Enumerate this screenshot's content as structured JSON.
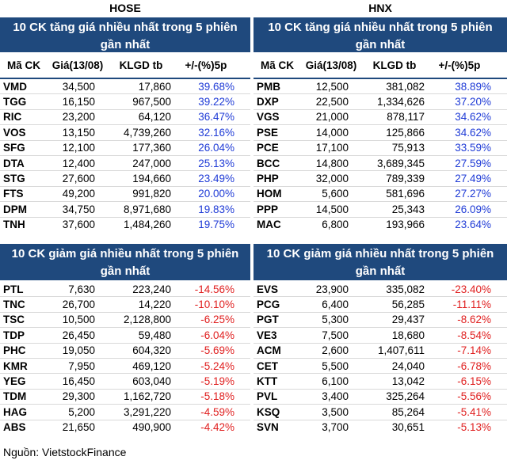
{
  "hose": {
    "title": "HOSE",
    "gainers": {
      "header": "10 CK tăng giá nhiều nhất trong 5 phiên gần nhất",
      "columns": [
        "Mã CK",
        "Giá(13/08)",
        "KLGD tb",
        "+/-(%)5p"
      ],
      "rows": [
        [
          "VMD",
          "34,500",
          "17,860",
          "39.68%"
        ],
        [
          "TGG",
          "16,150",
          "967,500",
          "39.22%"
        ],
        [
          "RIC",
          "23,200",
          "64,120",
          "36.47%"
        ],
        [
          "VOS",
          "13,150",
          "4,739,260",
          "32.16%"
        ],
        [
          "SFG",
          "12,100",
          "177,360",
          "26.04%"
        ],
        [
          "DTA",
          "12,400",
          "247,000",
          "25.13%"
        ],
        [
          "STG",
          "27,600",
          "194,660",
          "23.49%"
        ],
        [
          "FTS",
          "49,200",
          "991,820",
          "20.00%"
        ],
        [
          "DPM",
          "34,750",
          "8,971,680",
          "19.83%"
        ],
        [
          "TNH",
          "37,600",
          "1,484,260",
          "19.75%"
        ]
      ]
    },
    "losers": {
      "header": "10 CK giảm giá nhiều nhất trong 5 phiên gần nhất",
      "rows": [
        [
          "PTL",
          "7,630",
          "223,240",
          "-14.56%"
        ],
        [
          "TNC",
          "26,700",
          "14,220",
          "-10.10%"
        ],
        [
          "TSC",
          "10,500",
          "2,128,800",
          "-6.25%"
        ],
        [
          "TDP",
          "26,450",
          "59,480",
          "-6.04%"
        ],
        [
          "PHC",
          "19,050",
          "604,320",
          "-5.69%"
        ],
        [
          "KMR",
          "7,950",
          "469,120",
          "-5.24%"
        ],
        [
          "YEG",
          "16,450",
          "603,040",
          "-5.19%"
        ],
        [
          "TDM",
          "29,300",
          "1,162,720",
          "-5.18%"
        ],
        [
          "HAG",
          "5,200",
          "3,291,220",
          "-4.59%"
        ],
        [
          "ABS",
          "21,650",
          "490,900",
          "-4.42%"
        ]
      ]
    }
  },
  "hnx": {
    "title": "HNX",
    "gainers": {
      "header": "10 CK tăng giá nhiều nhất trong 5 phiên gần nhất",
      "columns": [
        "Mã CK",
        "Giá(13/08)",
        "KLGD tb",
        "+/-(%)5p"
      ],
      "rows": [
        [
          "PMB",
          "12,500",
          "381,082",
          "38.89%"
        ],
        [
          "DXP",
          "22,500",
          "1,334,626",
          "37.20%"
        ],
        [
          "VGS",
          "21,000",
          "878,117",
          "34.62%"
        ],
        [
          "PSE",
          "14,000",
          "125,866",
          "34.62%"
        ],
        [
          "PCE",
          "17,100",
          "75,913",
          "33.59%"
        ],
        [
          "BCC",
          "14,800",
          "3,689,345",
          "27.59%"
        ],
        [
          "PHP",
          "32,000",
          "789,339",
          "27.49%"
        ],
        [
          "HOM",
          "5,600",
          "581,696",
          "27.27%"
        ],
        [
          "PPP",
          "14,500",
          "25,343",
          "26.09%"
        ],
        [
          "MAC",
          "6,800",
          "193,966",
          "23.64%"
        ]
      ]
    },
    "losers": {
      "header": "10 CK giảm giá nhiều nhất trong 5 phiên gần nhất",
      "rows": [
        [
          "EVS",
          "23,900",
          "335,082",
          "-23.40%"
        ],
        [
          "PCG",
          "6,400",
          "56,285",
          "-11.11%"
        ],
        [
          "PGT",
          "5,300",
          "29,437",
          "-8.62%"
        ],
        [
          "VE3",
          "7,500",
          "18,680",
          "-8.54%"
        ],
        [
          "ACM",
          "2,600",
          "1,407,611",
          "-7.14%"
        ],
        [
          "CET",
          "5,500",
          "24,040",
          "-6.78%"
        ],
        [
          "KTT",
          "6,100",
          "13,042",
          "-6.15%"
        ],
        [
          "PVL",
          "3,400",
          "325,264",
          "-5.56%"
        ],
        [
          "KSQ",
          "3,500",
          "85,264",
          "-5.41%"
        ],
        [
          "SVN",
          "3,700",
          "30,651",
          "-5.13%"
        ]
      ]
    }
  },
  "source": "Nguồn: VietstockFinance",
  "colors": {
    "header_bg": "#1f497d",
    "up": "#1f3bd6",
    "down": "#e02020"
  }
}
